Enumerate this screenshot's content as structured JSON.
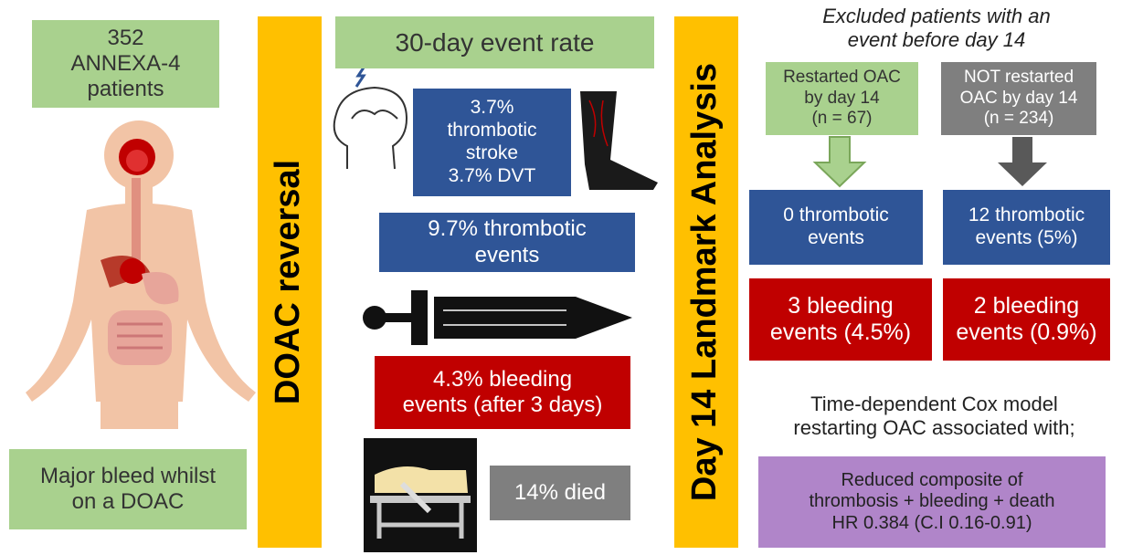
{
  "left": {
    "patients": [
      "352",
      "ANNEXA-4",
      "patients"
    ],
    "condition": [
      "Major bleed whilst",
      "on a DOAC"
    ]
  },
  "intervention": "DOAC reversal",
  "event_rate": {
    "title": "30-day event rate",
    "stroke_dvt": [
      "3.7%",
      "thrombotic",
      "stroke",
      "3.7% DVT"
    ],
    "thrombotic": [
      "9.7% thrombotic",
      "events"
    ],
    "bleeding": [
      "4.3% bleeding",
      "events (after 3 days)"
    ],
    "died": "14% died"
  },
  "landmark": {
    "title": "Day 14 Landmark Analysis",
    "note": [
      "Excluded patients with an",
      "event before day 14"
    ],
    "restarted": {
      "group": [
        "Restarted OAC",
        "by day 14",
        "(n = 67)"
      ],
      "thrombotic": [
        "0 thrombotic",
        "events"
      ],
      "bleeding": [
        "3 bleeding",
        "events (4.5%)"
      ]
    },
    "not_restarted": {
      "group": [
        "NOT restarted",
        "OAC by day 14",
        "(n = 234)"
      ],
      "thrombotic": [
        "12 thrombotic",
        "events (5%)"
      ],
      "bleeding": [
        "2 bleeding",
        "events (0.9%)"
      ]
    },
    "cox": {
      "intro": [
        "Time-dependent Cox model",
        "restarting OAC associated with;"
      ],
      "result": [
        "Reduced composite of",
        "thrombosis + bleeding + death",
        "HR 0.384 (C.I 0.16-0.91)"
      ]
    }
  }
}
